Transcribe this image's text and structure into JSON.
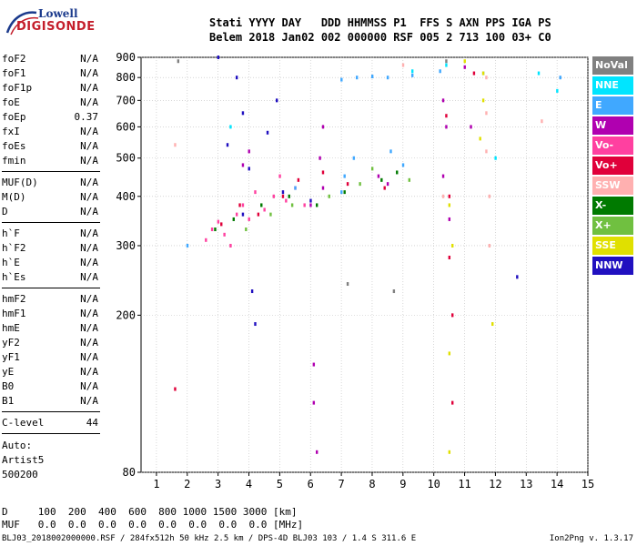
{
  "logo": {
    "line1": "Lowell",
    "line2": "DIGISONDE"
  },
  "header": {
    "line1": "Stati YYYY DAY   DDD HHMMSS P1  FFS S AXN PPS IGA PS",
    "line2": "Belem 2018 Jan02 002 000000 RSF 005 2 713 100 03+ C0"
  },
  "params": {
    "group1": [
      {
        "name": "foF2",
        "value": "N/A"
      },
      {
        "name": "foF1",
        "value": "N/A"
      },
      {
        "name": "foF1p",
        "value": "N/A"
      },
      {
        "name": "foE",
        "value": "N/A"
      },
      {
        "name": "foEp",
        "value": "0.37"
      },
      {
        "name": "fxI",
        "value": "N/A"
      },
      {
        "name": "foEs",
        "value": "N/A"
      },
      {
        "name": "fmin",
        "value": "N/A"
      }
    ],
    "group2": [
      {
        "name": "MUF(D)",
        "value": "N/A"
      },
      {
        "name": "M(D)",
        "value": "N/A"
      },
      {
        "name": "D",
        "value": "N/A"
      }
    ],
    "group3": [
      {
        "name": "h`F",
        "value": "N/A"
      },
      {
        "name": "h`F2",
        "value": "N/A"
      },
      {
        "name": "h`E",
        "value": "N/A"
      },
      {
        "name": "h`Es",
        "value": "N/A"
      }
    ],
    "group4": [
      {
        "name": "hmF2",
        "value": "N/A"
      },
      {
        "name": "hmF1",
        "value": "N/A"
      },
      {
        "name": "hmE",
        "value": "N/A"
      },
      {
        "name": "yF2",
        "value": "N/A"
      },
      {
        "name": "yF1",
        "value": "N/A"
      },
      {
        "name": "yE",
        "value": "N/A"
      },
      {
        "name": "B0",
        "value": "N/A"
      },
      {
        "name": "B1",
        "value": "N/A"
      }
    ],
    "group5": [
      {
        "name": "C-level",
        "value": "44"
      }
    ]
  },
  "auto": {
    "line1": "Auto:",
    "line2": "Artist5",
    "line3": "500200"
  },
  "legend": [
    {
      "label": "NoVal",
      "color": "#808080"
    },
    {
      "label": "NNE",
      "color": "#00e5ff"
    },
    {
      "label": "E",
      "color": "#40a8ff"
    },
    {
      "label": "W",
      "color": "#b000b0"
    },
    {
      "label": "Vo-",
      "color": "#ff40a0"
    },
    {
      "label": "Vo+",
      "color": "#e0003a"
    },
    {
      "label": "SSW",
      "color": "#ffb0b0"
    },
    {
      "label": "X-",
      "color": "#007a00"
    },
    {
      "label": "X+",
      "color": "#70c040"
    },
    {
      "label": "SSE",
      "color": "#e0e000"
    },
    {
      "label": "NNW",
      "color": "#2010c0"
    }
  ],
  "dtable": {
    "row1": "D     100  200  400  600  800 1000 1500 3000 [km]",
    "row2": "MUF   0.0  0.0  0.0  0.0  0.0  0.0  0.0  0.0 [MHz]"
  },
  "footer": "BLJ03_2018002000000.RSF / 284fx512h 50 kHz 2.5 km / DPS-4D BLJ03 103 / 1.4 S 311.6 E",
  "version": "Ion2Png v. 1.3.17",
  "chart_data": {
    "type": "scatter",
    "xlabel": "",
    "ylabel": "",
    "xlim": [
      0.5,
      15
    ],
    "ylim": [
      80,
      900
    ],
    "x_ticks": [
      1,
      2,
      3,
      4,
      5,
      6,
      7,
      8,
      9,
      10,
      11,
      12,
      13,
      14,
      15
    ],
    "y_ticks": [
      80,
      200,
      300,
      400,
      500,
      600,
      700,
      800,
      900
    ],
    "y_scale": "log",
    "grid": true,
    "legend_position": "right",
    "series": [
      {
        "name": "Vo-",
        "color": "#ff40a0",
        "points": [
          [
            2.8,
            330
          ],
          [
            3.0,
            345
          ],
          [
            3.2,
            320
          ],
          [
            3.6,
            360
          ],
          [
            3.8,
            380
          ],
          [
            4.0,
            350
          ],
          [
            4.5,
            370
          ],
          [
            4.8,
            400
          ],
          [
            5.2,
            390
          ],
          [
            5.5,
            420
          ],
          [
            2.6,
            310
          ],
          [
            3.4,
            300
          ],
          [
            4.2,
            410
          ],
          [
            5.0,
            450
          ],
          [
            5.8,
            380
          ]
        ]
      },
      {
        "name": "W",
        "color": "#b000b0",
        "points": [
          [
            6.0,
            380
          ],
          [
            6.3,
            500
          ],
          [
            6.4,
            600
          ],
          [
            6.4,
            420
          ],
          [
            6.1,
            150
          ],
          [
            6.1,
            120
          ],
          [
            6.2,
            90
          ],
          [
            10.3,
            700
          ],
          [
            10.4,
            600
          ],
          [
            10.3,
            450
          ],
          [
            10.5,
            350
          ],
          [
            11.0,
            850
          ],
          [
            11.2,
            600
          ],
          [
            8.2,
            450
          ],
          [
            8.5,
            430
          ],
          [
            3.8,
            480
          ],
          [
            4.0,
            520
          ]
        ]
      },
      {
        "name": "Vo+",
        "color": "#e0003a",
        "points": [
          [
            3.1,
            340
          ],
          [
            3.7,
            380
          ],
          [
            4.3,
            360
          ],
          [
            5.1,
            400
          ],
          [
            5.6,
            440
          ],
          [
            6.4,
            460
          ],
          [
            10.4,
            640
          ],
          [
            10.5,
            400
          ],
          [
            10.5,
            280
          ],
          [
            10.6,
            200
          ],
          [
            10.6,
            120
          ],
          [
            11.3,
            820
          ],
          [
            8.4,
            420
          ],
          [
            7.2,
            430
          ],
          [
            1.6,
            130
          ]
        ]
      },
      {
        "name": "E",
        "color": "#40a8ff",
        "points": [
          [
            7.0,
            790
          ],
          [
            7.5,
            800
          ],
          [
            8.0,
            805
          ],
          [
            8.5,
            800
          ],
          [
            9.3,
            810
          ],
          [
            10.2,
            830
          ],
          [
            11.6,
            820
          ],
          [
            14.1,
            800
          ],
          [
            7.1,
            450
          ],
          [
            7.4,
            500
          ],
          [
            8.6,
            520
          ],
          [
            9.0,
            480
          ],
          [
            7.0,
            410
          ],
          [
            2.0,
            300
          ],
          [
            5.5,
            420
          ]
        ]
      },
      {
        "name": "NNW",
        "color": "#2010c0",
        "points": [
          [
            3.8,
            360
          ],
          [
            4.0,
            470
          ],
          [
            4.1,
            230
          ],
          [
            4.2,
            190
          ],
          [
            4.6,
            580
          ],
          [
            4.9,
            700
          ],
          [
            3.6,
            800
          ],
          [
            3.0,
            900
          ],
          [
            3.3,
            540
          ],
          [
            3.8,
            650
          ],
          [
            12.7,
            250
          ],
          [
            6.0,
            390
          ],
          [
            5.1,
            410
          ]
        ]
      },
      {
        "name": "X-",
        "color": "#007a00",
        "points": [
          [
            2.9,
            330
          ],
          [
            3.5,
            350
          ],
          [
            4.4,
            380
          ],
          [
            5.3,
            400
          ],
          [
            6.2,
            380
          ],
          [
            7.1,
            410
          ],
          [
            8.3,
            440
          ],
          [
            8.8,
            460
          ]
        ]
      },
      {
        "name": "X+",
        "color": "#70c040",
        "points": [
          [
            3.9,
            330
          ],
          [
            4.7,
            360
          ],
          [
            5.4,
            380
          ],
          [
            6.6,
            400
          ],
          [
            7.6,
            430
          ],
          [
            9.2,
            440
          ],
          [
            8.0,
            470
          ]
        ]
      },
      {
        "name": "SSE",
        "color": "#e0e000",
        "points": [
          [
            11.6,
            820
          ],
          [
            11.6,
            700
          ],
          [
            11.5,
            560
          ],
          [
            10.5,
            380
          ],
          [
            10.6,
            300
          ],
          [
            10.5,
            160
          ],
          [
            11.0,
            880
          ],
          [
            10.5,
            90
          ],
          [
            11.9,
            190
          ]
        ]
      },
      {
        "name": "SSW",
        "color": "#ffb0b0",
        "points": [
          [
            11.7,
            800
          ],
          [
            11.7,
            650
          ],
          [
            11.7,
            520
          ],
          [
            11.8,
            400
          ],
          [
            11.8,
            300
          ],
          [
            9.0,
            860
          ],
          [
            1.6,
            540
          ],
          [
            13.5,
            620
          ],
          [
            10.3,
            400
          ]
        ]
      },
      {
        "name": "NNE",
        "color": "#00e5ff",
        "points": [
          [
            10.4,
            860
          ],
          [
            12.0,
            500
          ],
          [
            13.4,
            820
          ],
          [
            14.0,
            740
          ],
          [
            3.4,
            600
          ],
          [
            9.3,
            830
          ]
        ]
      },
      {
        "name": "NoVal",
        "color": "#808080",
        "points": [
          [
            1.7,
            880
          ],
          [
            7.2,
            240
          ],
          [
            8.7,
            230
          ],
          [
            10.4,
            880
          ]
        ]
      }
    ]
  }
}
